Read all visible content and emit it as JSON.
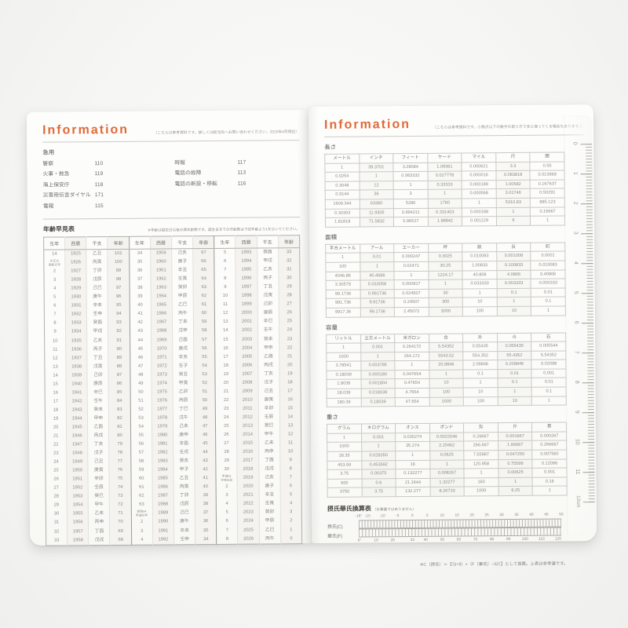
{
  "left_page": {
    "title": "Information",
    "disclaimer": "（こちらは参考資料です。詳しくは該当先へお問い合わせください。2025年4月現在）",
    "emergency": {
      "heading": "急用",
      "col1": [
        {
          "label": "警察",
          "number": "110"
        },
        {
          "label": "火事・救急",
          "number": "119"
        },
        {
          "label": "海上保安庁",
          "number": "118"
        },
        {
          "label": "災害用伝言ダイヤル",
          "number": "171"
        },
        {
          "label": "電報",
          "number": "115"
        }
      ],
      "col2": [
        {
          "label": "時報",
          "number": "117"
        },
        {
          "label": "電話の故障",
          "number": "113"
        },
        {
          "label": "電話の新設・移転",
          "number": "116"
        }
      ]
    },
    "age_chart": {
      "title": "年齢早見表",
      "note": "※年齢は誕生日以後の満年齢数です。誕生日までの年齢数は下記年齢より1をひいてください。",
      "headers": [
        "生年",
        "西暦",
        "干支",
        "年齢"
      ],
      "groups": [
        [
          [
            "14",
            "1925",
            "乙丑",
            "101"
          ],
          [
            "大正15\n昭和元年",
            "1926",
            "丙寅",
            "100"
          ],
          [
            "2",
            "1927",
            "丁卯",
            "99"
          ],
          [
            "3",
            "1928",
            "戊辰",
            "98"
          ],
          [
            "4",
            "1929",
            "己巳",
            "97"
          ],
          [
            "5",
            "1930",
            "庚午",
            "96"
          ],
          [
            "6",
            "1931",
            "辛未",
            "95"
          ],
          [
            "7",
            "1932",
            "壬申",
            "94"
          ],
          [
            "8",
            "1933",
            "癸酉",
            "93"
          ],
          [
            "9",
            "1934",
            "甲戌",
            "92"
          ],
          [
            "10",
            "1935",
            "乙亥",
            "91"
          ],
          [
            "11",
            "1936",
            "丙子",
            "90"
          ],
          [
            "12",
            "1937",
            "丁丑",
            "89"
          ],
          [
            "13",
            "1938",
            "戊寅",
            "88"
          ],
          [
            "14",
            "1939",
            "己卯",
            "87"
          ],
          [
            "15",
            "1940",
            "庚辰",
            "86"
          ],
          [
            "16",
            "1941",
            "辛巳",
            "85"
          ],
          [
            "17",
            "1942",
            "壬午",
            "84"
          ],
          [
            "18",
            "1943",
            "癸未",
            "83"
          ],
          [
            "19",
            "1944",
            "甲申",
            "82"
          ],
          [
            "20",
            "1945",
            "乙酉",
            "81"
          ],
          [
            "21",
            "1946",
            "丙戌",
            "80"
          ],
          [
            "22",
            "1947",
            "丁亥",
            "79"
          ],
          [
            "23",
            "1948",
            "戊子",
            "78"
          ],
          [
            "24",
            "1949",
            "己丑",
            "77"
          ],
          [
            "25",
            "1950",
            "庚寅",
            "76"
          ],
          [
            "26",
            "1951",
            "辛卯",
            "75"
          ],
          [
            "27",
            "1952",
            "壬辰",
            "74"
          ],
          [
            "28",
            "1953",
            "癸巳",
            "73"
          ],
          [
            "29",
            "1954",
            "甲午",
            "72"
          ],
          [
            "30",
            "1955",
            "乙未",
            "71"
          ],
          [
            "31",
            "1956",
            "丙申",
            "70"
          ],
          [
            "32",
            "1957",
            "丁酉",
            "69"
          ],
          [
            "33",
            "1958",
            "戊戌",
            "68"
          ]
        ],
        [
          [
            "34",
            "1959",
            "己亥",
            "67"
          ],
          [
            "35",
            "1960",
            "庚子",
            "66"
          ],
          [
            "36",
            "1961",
            "辛丑",
            "65"
          ],
          [
            "37",
            "1962",
            "壬寅",
            "64"
          ],
          [
            "38",
            "1963",
            "癸卯",
            "63"
          ],
          [
            "39",
            "1964",
            "甲辰",
            "62"
          ],
          [
            "40",
            "1965",
            "乙巳",
            "61"
          ],
          [
            "41",
            "1966",
            "丙午",
            "60"
          ],
          [
            "42",
            "1967",
            "丁未",
            "59"
          ],
          [
            "43",
            "1968",
            "戊申",
            "58"
          ],
          [
            "44",
            "1969",
            "己酉",
            "57"
          ],
          [
            "45",
            "1970",
            "庚戌",
            "56"
          ],
          [
            "46",
            "1971",
            "辛亥",
            "55"
          ],
          [
            "47",
            "1972",
            "壬子",
            "54"
          ],
          [
            "48",
            "1973",
            "癸丑",
            "53"
          ],
          [
            "49",
            "1974",
            "甲寅",
            "52"
          ],
          [
            "50",
            "1975",
            "乙卯",
            "51"
          ],
          [
            "51",
            "1976",
            "丙辰",
            "50"
          ],
          [
            "52",
            "1977",
            "丁巳",
            "49"
          ],
          [
            "53",
            "1978",
            "戊午",
            "48"
          ],
          [
            "54",
            "1979",
            "己未",
            "47"
          ],
          [
            "55",
            "1980",
            "庚申",
            "46"
          ],
          [
            "56",
            "1981",
            "辛酉",
            "45"
          ],
          [
            "57",
            "1982",
            "壬戌",
            "44"
          ],
          [
            "58",
            "1983",
            "癸亥",
            "43"
          ],
          [
            "59",
            "1984",
            "甲子",
            "42"
          ],
          [
            "60",
            "1985",
            "乙丑",
            "41"
          ],
          [
            "61",
            "1986",
            "丙寅",
            "40"
          ],
          [
            "62",
            "1987",
            "丁卯",
            "39"
          ],
          [
            "63",
            "1988",
            "戊辰",
            "38"
          ],
          [
            "昭和64\n平成元年",
            "1989",
            "己巳",
            "37"
          ],
          [
            "2",
            "1990",
            "庚午",
            "36"
          ],
          [
            "3",
            "1991",
            "辛未",
            "35"
          ],
          [
            "4",
            "1992",
            "壬申",
            "34"
          ]
        ],
        [
          [
            "5",
            "1993",
            "癸酉",
            "33"
          ],
          [
            "6",
            "1994",
            "甲戌",
            "32"
          ],
          [
            "7",
            "1995",
            "乙亥",
            "31"
          ],
          [
            "8",
            "1996",
            "丙子",
            "30"
          ],
          [
            "9",
            "1997",
            "丁丑",
            "29"
          ],
          [
            "10",
            "1998",
            "戊寅",
            "28"
          ],
          [
            "11",
            "1999",
            "己卯",
            "27"
          ],
          [
            "12",
            "2000",
            "庚辰",
            "26"
          ],
          [
            "13",
            "2001",
            "辛巳",
            "25"
          ],
          [
            "14",
            "2002",
            "壬午",
            "24"
          ],
          [
            "15",
            "2003",
            "癸未",
            "23"
          ],
          [
            "16",
            "2004",
            "甲申",
            "22"
          ],
          [
            "17",
            "2005",
            "乙酉",
            "21"
          ],
          [
            "18",
            "2006",
            "丙戌",
            "20"
          ],
          [
            "19",
            "2007",
            "丁亥",
            "19"
          ],
          [
            "20",
            "2008",
            "戊子",
            "18"
          ],
          [
            "21",
            "2009",
            "己丑",
            "17"
          ],
          [
            "22",
            "2010",
            "庚寅",
            "16"
          ],
          [
            "23",
            "2011",
            "辛卯",
            "15"
          ],
          [
            "24",
            "2012",
            "壬辰",
            "14"
          ],
          [
            "25",
            "2013",
            "癸巳",
            "13"
          ],
          [
            "26",
            "2014",
            "甲午",
            "12"
          ],
          [
            "27",
            "2015",
            "乙未",
            "11"
          ],
          [
            "28",
            "2016",
            "丙申",
            "10"
          ],
          [
            "29",
            "2017",
            "丁酉",
            "9"
          ],
          [
            "30",
            "2018",
            "戊戌",
            "8"
          ],
          [
            "平成31\n令和元年",
            "2019",
            "己亥",
            "7"
          ],
          [
            "2",
            "2020",
            "庚子",
            "6"
          ],
          [
            "3",
            "2021",
            "辛丑",
            "5"
          ],
          [
            "4",
            "2022",
            "壬寅",
            "4"
          ],
          [
            "5",
            "2023",
            "癸卯",
            "3"
          ],
          [
            "6",
            "2024",
            "甲辰",
            "2"
          ],
          [
            "7",
            "2025",
            "乙巳",
            "1"
          ],
          [
            "8",
            "2026",
            "丙午",
            "0"
          ]
        ]
      ]
    }
  },
  "right_page": {
    "title": "Information",
    "disclaimer": "（こちらは参考資料です。小数点以下の数字の取り方で多少違ってくる場合もあります。）",
    "tables": [
      {
        "id": "length",
        "label": "長さ",
        "headers": [
          "メートル",
          "インチ",
          "フィート",
          "ヤード",
          "マイル",
          "尺",
          "間"
        ],
        "rows": [
          [
            "1",
            "39.3701",
            "3.28084",
            "1.09361",
            "0.000621",
            "3.3",
            "0.55"
          ],
          [
            "0.0254",
            "1",
            "0.083332",
            "0.027778",
            "0.000016",
            "0.083818",
            "0.013969"
          ],
          [
            "0.3048",
            "12",
            "1",
            "0.33333",
            "0.000189",
            "1.00582",
            "0.167637"
          ],
          [
            "0.9144",
            "36",
            "3",
            "1",
            "0.000568",
            "3.01746",
            "0.50291"
          ],
          [
            "1609.344",
            "63360",
            "5280",
            "1760",
            "1",
            "5310.83",
            "885.123"
          ],
          [
            "0.30303",
            "11.9305",
            "0.994211",
            "0.331403",
            "0.000188",
            "1",
            "0.16667"
          ],
          [
            "1.81818",
            "71.5832",
            "5.96527",
            "1.98842",
            "0.001129",
            "6",
            "1"
          ]
        ]
      },
      {
        "id": "area",
        "label": "面積",
        "headers": [
          "平方メートル",
          "アール",
          "エーカー",
          "坪",
          "畝",
          "反",
          "町"
        ],
        "rows": [
          [
            "1",
            "0.01",
            "0.000247",
            "0.3025",
            "0.010083",
            "0.001008",
            "0.0001"
          ],
          [
            "100",
            "1",
            "0.02471",
            "30.25",
            "1.00833",
            "0.100833",
            "0.010083"
          ],
          [
            "4046.86",
            "40.4686",
            "1",
            "1224.17",
            "40.806",
            "4.0806",
            "0.40806"
          ],
          [
            "3.30579",
            "0.033058",
            "0.000817",
            "1",
            "0.033333",
            "0.003333",
            "0.000333"
          ],
          [
            "99.1736",
            "0.991736",
            "0.024507",
            "30",
            "1",
            "0.1",
            "0.01"
          ],
          [
            "991.736",
            "9.91736",
            "0.24507",
            "300",
            "10",
            "1",
            "0.1"
          ],
          [
            "9917.36",
            "99.1736",
            "2.45072",
            "3000",
            "100",
            "10",
            "1"
          ]
        ]
      },
      {
        "id": "volume",
        "label": "容量",
        "headers": [
          "リットル",
          "立方メートル",
          "米ガロン",
          "合",
          "升",
          "斗",
          "石"
        ],
        "rows": [
          [
            "1",
            "0.001",
            "0.264172",
            "5.54352",
            "0.55435",
            "0.055435",
            "0.005544"
          ],
          [
            "1000",
            "1",
            "264.172",
            "5543.52",
            "554.352",
            "55.4352",
            "5.54352"
          ],
          [
            "3.78541",
            "0.003785",
            "1",
            "20.9846",
            "2.09846",
            "0.209846",
            "0.02098"
          ],
          [
            "0.18039",
            "0.000180",
            "0.047654",
            "1",
            "0.1",
            "0.01",
            "0.001"
          ],
          [
            "1.8039",
            "0.001804",
            "0.47654",
            "10",
            "1",
            "0.1",
            "0.01"
          ],
          [
            "18.039",
            "0.018039",
            "4.7654",
            "100",
            "10",
            "1",
            "0.1"
          ],
          [
            "180.39",
            "0.18039",
            "47.654",
            "1000",
            "100",
            "10",
            "1"
          ]
        ]
      },
      {
        "id": "weight",
        "label": "重さ",
        "headers": [
          "グラム",
          "キログラム",
          "オンス",
          "ポンド",
          "匁",
          "斤",
          "貫"
        ],
        "rows": [
          [
            "1",
            "0.001",
            "0.035274",
            "0.0022046",
            "0.26667",
            "0.001667",
            "0.000267"
          ],
          [
            "1000",
            "1",
            "35.274",
            "2.20462",
            "266.667",
            "1.66667",
            "0.266667"
          ],
          [
            "28.35",
            "0.028350",
            "1",
            "0.0625",
            "7.55987",
            "0.047250",
            "0.007560"
          ],
          [
            "453.59",
            "0.453592",
            "16",
            "1",
            "120.958",
            "0.75599",
            "0.12096"
          ],
          [
            "3.75",
            "0.00375",
            "0.132277",
            "0.008267",
            "1",
            "0.00625",
            "0.001"
          ],
          [
            "600",
            "0.6",
            "21.1644",
            "1.32277",
            "160",
            "1",
            "0.16"
          ],
          [
            "3750",
            "3.75",
            "132.277",
            "8.26733",
            "1000",
            "6.25",
            "1"
          ]
        ]
      }
    ],
    "temperature": {
      "title": "摂氏華氏換算表",
      "title_note": "（計算器ではありません）",
      "celsius_label": "摂氏(C)",
      "fahrenheit_label": "華氏(F)",
      "celsius_ticks": [
        "-18°",
        "-15",
        "-10",
        "-5",
        "0",
        "5",
        "10",
        "15",
        "20",
        "25",
        "30",
        "35",
        "40",
        "45",
        "50"
      ],
      "fahrenheit_ticks": [
        "0°",
        "10",
        "20",
        "32",
        "40",
        "50",
        "60",
        "70",
        "80",
        "90",
        "100",
        "110",
        "120"
      ],
      "footnote": "※C（摂氏）＝【（5÷9）×（F〔華氏〕−32）】として換算。上表は参考値です。"
    },
    "ruler": {
      "numbers": [
        "0",
        "1",
        "2",
        "3",
        "4",
        "5",
        "6",
        "7",
        "8",
        "9",
        "10",
        "11"
      ],
      "end_label": "12cm"
    }
  }
}
